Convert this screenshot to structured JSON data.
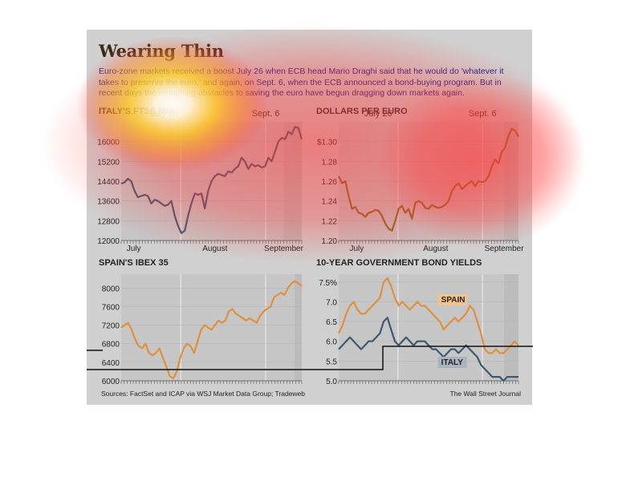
{
  "header": {
    "title": "Wearing Thin",
    "subtitle": "Euro-zone markets received a boost July 26 when ECB head Mario Draghi said that he would do 'whatever it takes to preserve the euro,' and again, on Sept. 6, when the ECB announced a bond-buying program. But in recent days the remaining obstacles to saving the euro have begun dragging down markets again."
  },
  "footer": {
    "source": "Sources: FactSet and ICAP via WSJ Market Data Group; Tradeweb",
    "brand": "The Wall Street Journal"
  },
  "colors": {
    "panel": "#d0d0d0",
    "plot": "#c6c6c6",
    "title": "#3a2a1a",
    "subtitle": "#1a1a8a",
    "ftse": "#3f5870",
    "dollar": "#8a6a1a",
    "ibex": "#e0903c",
    "spain_yield": "#e0903c",
    "italy_yield": "#3f5870",
    "heat_hot": "#ffffff",
    "heat_yellow": "#ffd21e",
    "heat_red": "#ff3a3a"
  },
  "chart_data": [
    {
      "type": "line",
      "title": "ITALY'S FTSE MIB",
      "annotations": [
        "July 26",
        "Sept. 6"
      ],
      "x_labels": [
        "July",
        "August",
        "September"
      ],
      "ylim": [
        12000,
        16800
      ],
      "y_ticks": [
        "16000",
        "15200",
        "14400",
        "13600",
        "12800",
        "12000"
      ],
      "series": [
        {
          "values": [
            14300,
            14350,
            14500,
            14400,
            14000,
            13750,
            13800,
            13850,
            13800,
            13500,
            13650,
            13600,
            13500,
            13400,
            13450,
            13600,
            13000,
            12600,
            12300,
            12400,
            13000,
            13500,
            13900,
            13850,
            13900,
            13300,
            14000,
            14400,
            14600,
            14700,
            14650,
            14600,
            14800,
            14750,
            14900,
            15000,
            15350,
            15200,
            14900,
            15100,
            15000,
            15050,
            14950,
            15000,
            15350,
            15200,
            15600,
            16000,
            16150,
            16100,
            16400,
            16300,
            16600,
            16550,
            16100
          ]
        }
      ]
    },
    {
      "type": "line",
      "title": "DOLLARS PER EURO",
      "annotations": [
        "July 26",
        "Sept. 6"
      ],
      "x_labels": [
        "July",
        "August",
        "September"
      ],
      "ylim": [
        1.2,
        1.32
      ],
      "y_ticks": [
        "$1.30",
        "1.28",
        "1.26",
        "1.24",
        "1.22",
        "1.20"
      ],
      "series": [
        {
          "values": [
            1.265,
            1.258,
            1.26,
            1.245,
            1.232,
            1.234,
            1.228,
            1.227,
            1.224,
            1.228,
            1.229,
            1.231,
            1.23,
            1.225,
            1.217,
            1.212,
            1.21,
            1.22,
            1.232,
            1.235,
            1.228,
            1.232,
            1.222,
            1.238,
            1.24,
            1.238,
            1.233,
            1.232,
            1.236,
            1.234,
            1.233,
            1.234,
            1.236,
            1.24,
            1.25,
            1.255,
            1.258,
            1.252,
            1.255,
            1.258,
            1.26,
            1.255,
            1.26,
            1.259,
            1.26,
            1.265,
            1.275,
            1.282,
            1.278,
            1.29,
            1.294,
            1.306,
            1.313,
            1.311,
            1.305
          ]
        }
      ]
    },
    {
      "type": "line",
      "title": "SPAIN'S IBEX 35",
      "x_labels": [],
      "ylim": [
        6000,
        8300
      ],
      "y_ticks": [
        "8000",
        "7600",
        "7200",
        "6800",
        "6400",
        "6000"
      ],
      "series": [
        {
          "values": [
            7150,
            7200,
            7250,
            7100,
            6900,
            6750,
            6700,
            6800,
            6600,
            6550,
            6600,
            6700,
            6500,
            6300,
            6100,
            6050,
            6200,
            6500,
            6700,
            6800,
            6750,
            6600,
            6850,
            7100,
            7200,
            7150,
            7100,
            7200,
            7300,
            7250,
            7300,
            7500,
            7550,
            7450,
            7400,
            7350,
            7300,
            7350,
            7300,
            7250,
            7400,
            7500,
            7550,
            7600,
            7800,
            7850,
            7900,
            7850,
            8000,
            8100,
            8150,
            8100,
            8050
          ]
        }
      ]
    },
    {
      "type": "line",
      "title": "10-YEAR GOVERNMENT BOND YIELDS",
      "x_labels": [],
      "ylim": [
        5.0,
        7.7
      ],
      "y_ticks": [
        "7.5%",
        "7.0",
        "6.5",
        "6.0",
        "5.5",
        "5.0"
      ],
      "series": [
        {
          "name": "SPAIN",
          "values": [
            6.2,
            6.4,
            6.7,
            6.9,
            7.0,
            6.8,
            6.7,
            6.7,
            6.8,
            6.9,
            7.0,
            7.1,
            7.5,
            7.6,
            7.4,
            7.1,
            6.9,
            7.0,
            6.9,
            6.8,
            6.9,
            7.0,
            6.9,
            6.9,
            6.8,
            6.7,
            6.6,
            6.5,
            6.3,
            6.4,
            6.5,
            6.6,
            6.5,
            6.6,
            6.7,
            6.9,
            6.8,
            6.5,
            6.2,
            5.8,
            5.7,
            5.7,
            5.8,
            5.7,
            5.7,
            5.8,
            5.9,
            6.0,
            5.9
          ]
        },
        {
          "name": "ITALY",
          "values": [
            5.8,
            5.9,
            6.0,
            6.1,
            6.0,
            5.9,
            5.8,
            5.9,
            6.0,
            6.0,
            6.1,
            6.2,
            6.5,
            6.6,
            6.3,
            6.0,
            5.9,
            6.0,
            6.1,
            6.0,
            5.9,
            6.0,
            6.0,
            6.0,
            5.9,
            5.8,
            5.8,
            5.7,
            5.6,
            5.7,
            5.8,
            5.8,
            5.7,
            5.8,
            5.9,
            5.8,
            5.7,
            5.6,
            5.4,
            5.3,
            5.2,
            5.1,
            5.1,
            5.1,
            5.0,
            5.1,
            5.1,
            5.1,
            5.1
          ]
        }
      ]
    }
  ]
}
